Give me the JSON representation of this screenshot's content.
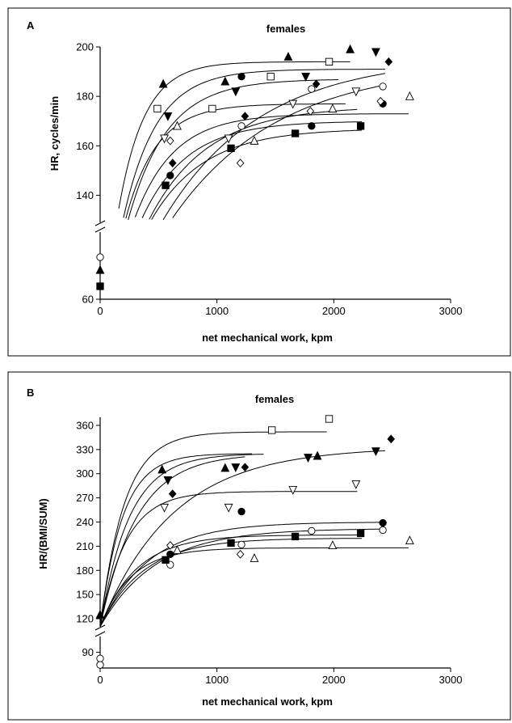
{
  "chart_data": [
    {
      "panel": "A",
      "title": "females",
      "type": "scatter",
      "xlabel": "net mechanical work, kpm",
      "ylabel": "HR, cycles/min",
      "xlim": [
        0,
        3000
      ],
      "ylim_upper": [
        130,
        200
      ],
      "ylim_lower": [
        60,
        80
      ],
      "axis_break": true,
      "xticks": [
        "0",
        "1000",
        "2000",
        "3000"
      ],
      "yticks": [
        "60",
        "140",
        "160",
        "180",
        "200"
      ],
      "marker_points": [
        {
          "marker": "triangle-up-filled",
          "x": 540,
          "y": 185
        },
        {
          "marker": "triangle-up-filled",
          "x": 1070,
          "y": 186
        },
        {
          "marker": "triangle-up-filled",
          "x": 1610,
          "y": 196
        },
        {
          "marker": "triangle-up-filled",
          "x": 2140,
          "y": 199
        },
        {
          "marker": "square-open",
          "x": 490,
          "y": 175
        },
        {
          "marker": "square-open",
          "x": 960,
          "y": 175
        },
        {
          "marker": "square-open",
          "x": 1460,
          "y": 188
        },
        {
          "marker": "square-open",
          "x": 1960,
          "y": 194
        },
        {
          "marker": "triangle-down-filled",
          "x": 580,
          "y": 172
        },
        {
          "marker": "triangle-down-filled",
          "x": 1160,
          "y": 182
        },
        {
          "marker": "triangle-down-filled",
          "x": 1760,
          "y": 188
        },
        {
          "marker": "triangle-down-filled",
          "x": 2360,
          "y": 198
        },
        {
          "marker": "diamond-filled",
          "x": 620,
          "y": 153
        },
        {
          "marker": "diamond-filled",
          "x": 1240,
          "y": 172
        },
        {
          "marker": "diamond-filled",
          "x": 1850,
          "y": 185
        },
        {
          "marker": "diamond-filled",
          "x": 2470,
          "y": 194
        },
        {
          "marker": "circle-filled",
          "x": 600,
          "y": 148
        },
        {
          "marker": "circle-filled",
          "x": 1210,
          "y": 188
        },
        {
          "marker": "circle-filled",
          "x": 1810,
          "y": 168
        },
        {
          "marker": "circle-filled",
          "x": 2420,
          "y": 177
        },
        {
          "marker": "circle-open",
          "x": 1210,
          "y": 168
        },
        {
          "marker": "circle-open",
          "x": 1810,
          "y": 183
        },
        {
          "marker": "circle-open",
          "x": 2420,
          "y": 184
        },
        {
          "marker": "triangle-down-open",
          "x": 550,
          "y": 163
        },
        {
          "marker": "triangle-down-open",
          "x": 1100,
          "y": 163
        },
        {
          "marker": "triangle-down-open",
          "x": 1650,
          "y": 177
        },
        {
          "marker": "triangle-down-open",
          "x": 2190,
          "y": 182
        },
        {
          "marker": "diamond-open",
          "x": 600,
          "y": 162
        },
        {
          "marker": "diamond-open",
          "x": 1200,
          "y": 153
        },
        {
          "marker": "diamond-open",
          "x": 1800,
          "y": 174
        },
        {
          "marker": "diamond-open",
          "x": 2400,
          "y": 178
        },
        {
          "marker": "triangle-up-open",
          "x": 660,
          "y": 168
        },
        {
          "marker": "triangle-up-open",
          "x": 1320,
          "y": 162
        },
        {
          "marker": "triangle-up-open",
          "x": 1990,
          "y": 175
        },
        {
          "marker": "triangle-up-open",
          "x": 2650,
          "y": 180
        },
        {
          "marker": "square-filled",
          "x": 560,
          "y": 144
        },
        {
          "marker": "square-filled",
          "x": 1120,
          "y": 159
        },
        {
          "marker": "square-filled",
          "x": 1670,
          "y": 165
        },
        {
          "marker": "square-filled",
          "x": 2230,
          "y": 168
        },
        {
          "marker": "square-filled",
          "x": 0,
          "y": 64
        },
        {
          "marker": "triangle-up-filled",
          "x": 0,
          "y": 69
        },
        {
          "marker": "circle-open",
          "x": 0,
          "y": 73
        }
      ],
      "curves": [
        {
          "asym": 194,
          "y0": 72,
          "k": 0.0045,
          "xmax": 2150
        },
        {
          "asym": 191,
          "y0": 70,
          "k": 0.0035,
          "xmax": 2450
        },
        {
          "asym": 187,
          "y0": 70,
          "k": 0.003,
          "xmax": 2050
        },
        {
          "asym": 196,
          "y0": 70,
          "k": 0.0012,
          "xmax": 2450
        },
        {
          "asym": 193,
          "y0": 70,
          "k": 0.0011,
          "xmax": 2450
        },
        {
          "asym": 177,
          "y0": 70,
          "k": 0.0038,
          "xmax": 2100
        },
        {
          "asym": 173,
          "y0": 70,
          "k": 0.003,
          "xmax": 2650
        },
        {
          "asym": 170,
          "y0": 70,
          "k": 0.0026,
          "xmax": 2250
        },
        {
          "asym": 167,
          "y0": 70,
          "k": 0.0022,
          "xmax": 2250
        },
        {
          "asym": 176,
          "y0": 70,
          "k": 0.002,
          "xmax": 2200
        }
      ]
    },
    {
      "panel": "B",
      "title": "females",
      "type": "scatter",
      "xlabel": "net mechanical work, kpm",
      "ylabel": "HR/(BMI/SUM)",
      "xlim": [
        0,
        3000
      ],
      "ylim_upper": [
        110,
        370
      ],
      "ylim_lower": [
        80,
        100
      ],
      "axis_break": true,
      "xticks": [
        "0",
        "1000",
        "2000",
        "3000"
      ],
      "yticks": [
        "90",
        "120",
        "150",
        "180",
        "210",
        "240",
        "270",
        "300",
        "330",
        "360"
      ],
      "marker_points": [
        {
          "marker": "square-open",
          "x": 1470,
          "y": 354
        },
        {
          "marker": "square-open",
          "x": 1960,
          "y": 368
        },
        {
          "marker": "triangle-up-filled",
          "x": 530,
          "y": 305
        },
        {
          "marker": "triangle-up-filled",
          "x": 1070,
          "y": 307
        },
        {
          "marker": "triangle-up-filled",
          "x": 1860,
          "y": 322
        },
        {
          "marker": "triangle-down-filled",
          "x": 580,
          "y": 292
        },
        {
          "marker": "triangle-down-filled",
          "x": 1160,
          "y": 308
        },
        {
          "marker": "triangle-down-filled",
          "x": 1780,
          "y": 320
        },
        {
          "marker": "triangle-down-filled",
          "x": 2360,
          "y": 328
        },
        {
          "marker": "diamond-filled",
          "x": 620,
          "y": 275
        },
        {
          "marker": "diamond-filled",
          "x": 1240,
          "y": 308
        },
        {
          "marker": "diamond-filled",
          "x": 2490,
          "y": 343
        },
        {
          "marker": "triangle-down-open",
          "x": 550,
          "y": 258
        },
        {
          "marker": "triangle-down-open",
          "x": 1100,
          "y": 258
        },
        {
          "marker": "triangle-down-open",
          "x": 1650,
          "y": 280
        },
        {
          "marker": "triangle-down-open",
          "x": 2190,
          "y": 287
        },
        {
          "marker": "circle-filled",
          "x": 1210,
          "y": 253
        },
        {
          "marker": "circle-filled",
          "x": 600,
          "y": 200
        },
        {
          "marker": "circle-filled",
          "x": 2420,
          "y": 239
        },
        {
          "marker": "circle-open",
          "x": 600,
          "y": 187
        },
        {
          "marker": "circle-open",
          "x": 1210,
          "y": 212
        },
        {
          "marker": "circle-open",
          "x": 1810,
          "y": 229
        },
        {
          "marker": "circle-open",
          "x": 2420,
          "y": 230
        },
        {
          "marker": "diamond-open",
          "x": 600,
          "y": 211
        },
        {
          "marker": "diamond-open",
          "x": 1200,
          "y": 200
        },
        {
          "marker": "triangle-up-open",
          "x": 660,
          "y": 205
        },
        {
          "marker": "triangle-up-open",
          "x": 1320,
          "y": 195
        },
        {
          "marker": "triangle-up-open",
          "x": 1990,
          "y": 211
        },
        {
          "marker": "triangle-up-open",
          "x": 2650,
          "y": 217
        },
        {
          "marker": "square-filled",
          "x": 560,
          "y": 193
        },
        {
          "marker": "square-filled",
          "x": 1120,
          "y": 214
        },
        {
          "marker": "square-filled",
          "x": 1670,
          "y": 222
        },
        {
          "marker": "square-filled",
          "x": 2230,
          "y": 226
        },
        {
          "marker": "triangle-up-filled",
          "x": 0,
          "y": 125
        },
        {
          "marker": "circle-open",
          "x": 0,
          "y": 86
        },
        {
          "marker": "circle-open",
          "x": 0,
          "y": 82
        }
      ],
      "curves": [
        {
          "asym": 352,
          "y0": 110,
          "k": 0.0048,
          "xmax": 1950
        },
        {
          "asym": 325,
          "y0": 110,
          "k": 0.0052,
          "xmax": 1300
        },
        {
          "asym": 325,
          "y0": 110,
          "k": 0.004,
          "xmax": 1400
        },
        {
          "asym": 325,
          "y0": 110,
          "k": 0.0032,
          "xmax": 1250
        },
        {
          "asym": 333,
          "y0": 110,
          "k": 0.0016,
          "xmax": 2450
        },
        {
          "asym": 278,
          "y0": 110,
          "k": 0.0045,
          "xmax": 2200
        },
        {
          "asym": 240,
          "y0": 110,
          "k": 0.0024,
          "xmax": 2450
        },
        {
          "asym": 232,
          "y0": 110,
          "k": 0.0021,
          "xmax": 2450
        },
        {
          "asym": 224,
          "y0": 110,
          "k": 0.0032,
          "xmax": 2250
        },
        {
          "asym": 220,
          "y0": 110,
          "k": 0.0027,
          "xmax": 2250
        },
        {
          "asym": 208,
          "y0": 110,
          "k": 0.0038,
          "xmax": 2650
        }
      ]
    }
  ]
}
